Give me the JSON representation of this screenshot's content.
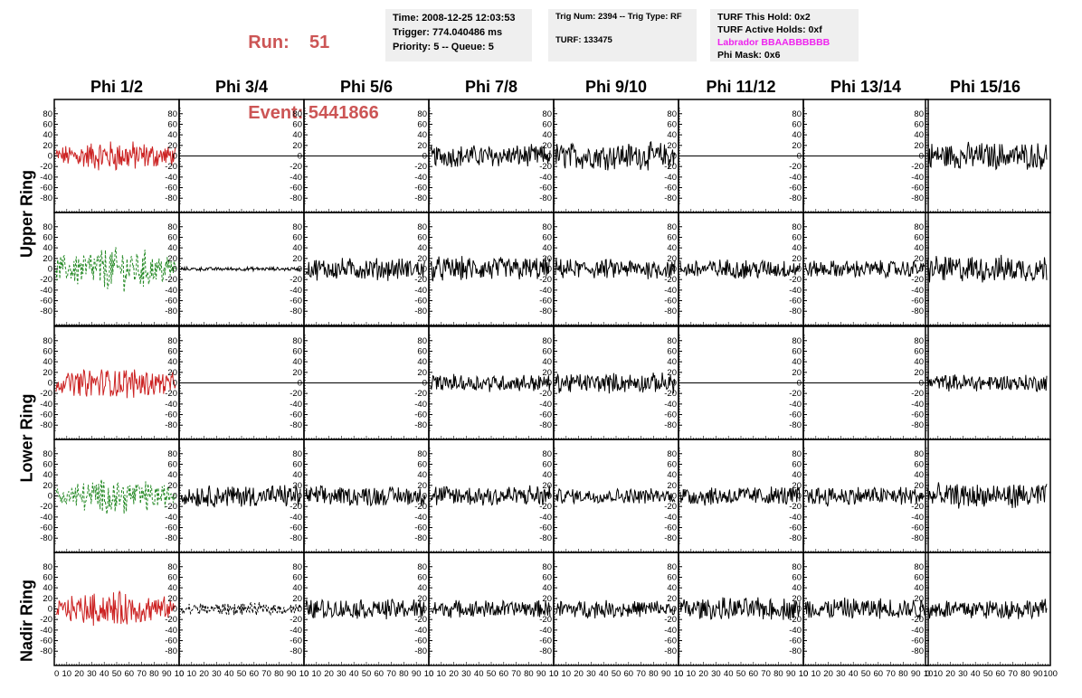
{
  "header": {
    "run_label": "Run:",
    "run_value": "51",
    "event_label": "Event:",
    "event_value": "5441866",
    "run_color": "#cc5555"
  },
  "info_panel_1": {
    "time": "Time: 2008-12-25 12:03:53",
    "trigger": "Trigger: 774.040486 ms",
    "priority": "Priority: 5 -- Queue: 5"
  },
  "info_panel_2": {
    "trig": "Trig Num: 2394 -- Trig Type: RF",
    "turf": "TURF: 133475"
  },
  "info_panel_3": {
    "this_hold": "TURF This Hold: 0x2",
    "active_holds": "TURF Active Holds: 0xf",
    "labrador": "Labrador BBAABBBBBB",
    "labrador_color": "#ee22ee",
    "phi_mask": "Phi Mask: 0x6"
  },
  "columns": [
    "Phi 1/2",
    "Phi 3/4",
    "Phi 5/6",
    "Phi 7/8",
    "Phi 9/10",
    "Phi 11/12",
    "Phi 13/14",
    "Phi 15/16"
  ],
  "ring_labels": [
    "Upper Ring",
    "Lower Ring",
    "Nadir Ring"
  ],
  "y_ticks": [
    "80",
    "60",
    "40",
    "20",
    "0",
    "-20",
    "-40",
    "-60",
    "-80"
  ],
  "x_ticks": [
    "0",
    "10",
    "20",
    "30",
    "40",
    "50",
    "60",
    "70",
    "80",
    "90",
    "100"
  ],
  "x_axis_compressed_text": "0 10203040506070809010",
  "colors": {
    "red_trace": "#cc2222",
    "green_trace": "#228822",
    "black_trace": "#000000"
  },
  "rows": [
    {
      "cells": [
        {
          "color": "red",
          "amp": 22
        },
        {
          "color": "flat",
          "amp": 0
        },
        {
          "color": "flat",
          "amp": 0
        },
        {
          "color": "black",
          "amp": 18
        },
        {
          "color": "black",
          "amp": 22
        },
        {
          "color": "flat",
          "amp": 0
        },
        {
          "color": "flat",
          "amp": 0
        },
        {
          "color": "black",
          "amp": 22
        }
      ]
    },
    {
      "cells": [
        {
          "color": "green",
          "amp": 30
        },
        {
          "color": "black",
          "amp": 3
        },
        {
          "color": "black",
          "amp": 18
        },
        {
          "color": "black",
          "amp": 20
        },
        {
          "color": "black",
          "amp": 16
        },
        {
          "color": "black",
          "amp": 16
        },
        {
          "color": "black",
          "amp": 14
        },
        {
          "color": "black",
          "amp": 22
        }
      ]
    },
    {
      "cells": [
        {
          "color": "red",
          "amp": 22
        },
        {
          "color": "flat",
          "amp": 0
        },
        {
          "color": "flat",
          "amp": 0
        },
        {
          "color": "black",
          "amp": 14
        },
        {
          "color": "black",
          "amp": 16
        },
        {
          "color": "flat",
          "amp": 0
        },
        {
          "color": "flat",
          "amp": 0
        },
        {
          "color": "black",
          "amp": 14
        }
      ]
    },
    {
      "cells": [
        {
          "color": "green",
          "amp": 24
        },
        {
          "color": "black",
          "amp": 18
        },
        {
          "color": "black",
          "amp": 16
        },
        {
          "color": "black",
          "amp": 18
        },
        {
          "color": "black",
          "amp": 12
        },
        {
          "color": "black",
          "amp": 16
        },
        {
          "color": "black",
          "amp": 16
        },
        {
          "color": "black",
          "amp": 20
        }
      ]
    },
    {
      "cells": [
        {
          "color": "red",
          "amp": 24
        },
        {
          "color": "dashed",
          "amp": 10
        },
        {
          "color": "black",
          "amp": 16
        },
        {
          "color": "black",
          "amp": 14
        },
        {
          "color": "black",
          "amp": 14
        },
        {
          "color": "black",
          "amp": 18
        },
        {
          "color": "black",
          "amp": 18
        },
        {
          "color": "black",
          "amp": 16
        }
      ]
    }
  ]
}
